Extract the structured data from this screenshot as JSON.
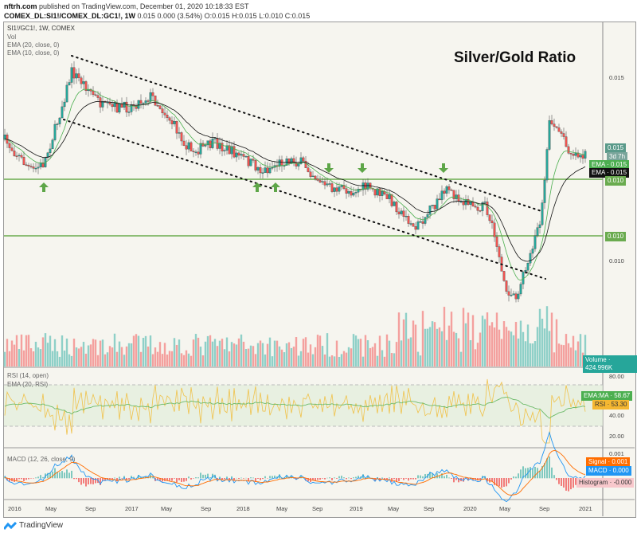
{
  "header": {
    "author": "nftrh.com",
    "published": "published on TradingView.com, December 01, 2020 10:18:33 EST",
    "symbol": "COMEX_DL:SI1!/COMEX_DL:GC1!, 1W",
    "quote": "0.015 0.000 (3.54%)",
    "o": "O:0.015",
    "h": "H:0.015",
    "l": "L:0.010",
    "c": "C:0.015"
  },
  "legend": {
    "main": "SI1!/GC1!, 1W, COMEX",
    "vol": "Vol",
    "ema20": "EMA (20, close, 0)",
    "ema10": "EMA (10, close, 0)",
    "rsi": "RSI (14, open)",
    "rsi_ema": "EMA (20, RSI)",
    "macd": "MACD (12, 26, close, 9)"
  },
  "annotation": "Silver/Gold Ratio",
  "price_axis": [
    "0.015",
    "0.010"
  ],
  "price_tags": {
    "last": "0.015",
    "countdown": "3d 7h",
    "ema": "EMA",
    "ema_a": "0.015",
    "ema_b": "0.015",
    "line1": "0.010",
    "line2": "0.010",
    "vol_label": "Volume",
    "vol_value": "424.996K"
  },
  "rsi_axis": [
    "80.00",
    "40.00",
    "20.00"
  ],
  "rsi_tags": {
    "ema_label": "EMA:MA",
    "ema_value": "58.67",
    "rsi_label": "RSI",
    "rsi_value": "53.30"
  },
  "macd_axis": [
    "0.001"
  ],
  "macd_tags": {
    "signal_label": "Signal",
    "signal_value": "0.001",
    "macd_label": "MACD",
    "macd_value": "0.000",
    "hist_label": "Histogram",
    "hist_value": "-0.000"
  },
  "time_axis": [
    "2016",
    "May",
    "Sep",
    "2017",
    "May",
    "Sep",
    "2018",
    "May",
    "Sep",
    "2019",
    "May",
    "Sep",
    "2020",
    "May",
    "Sep",
    "2021"
  ],
  "colors": {
    "up": "#26a69a",
    "down": "#ef5350",
    "green_line": "#6aab4f",
    "signal": "#ff6d00",
    "macd": "#2196f3"
  },
  "brand": "TradingView"
}
